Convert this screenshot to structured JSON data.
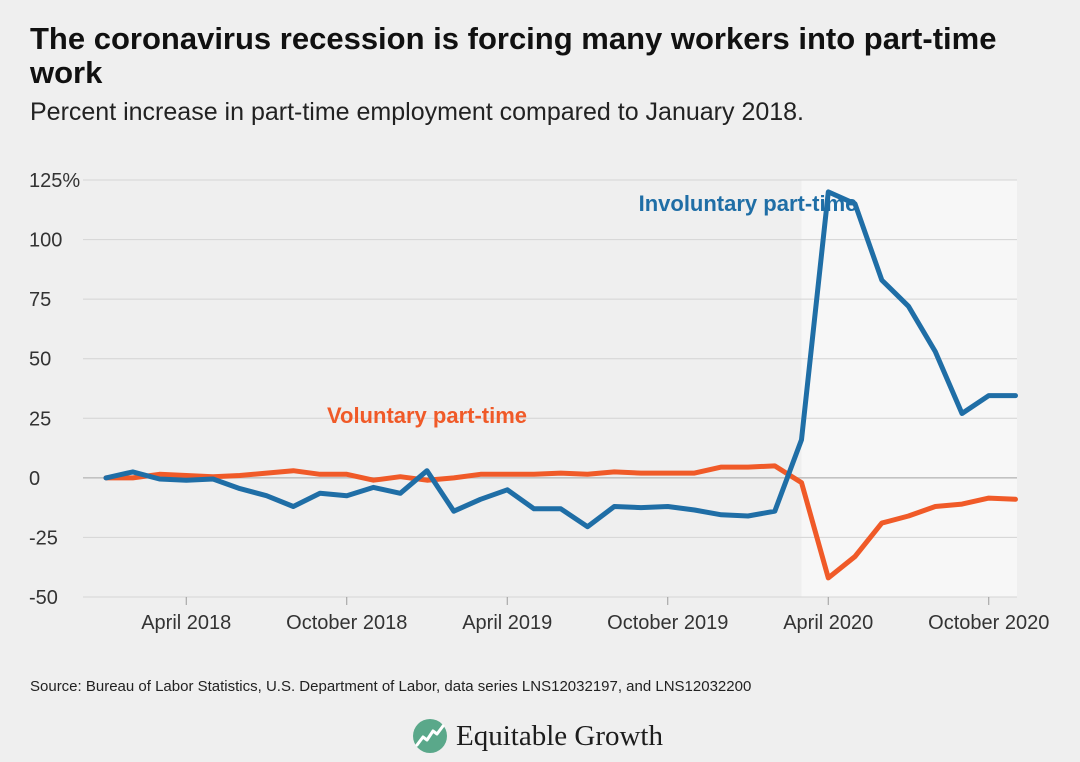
{
  "header": {
    "title": "The coronavirus recession is forcing many workers into part-time work",
    "subtitle": "Percent increase in part-time employment compared to January 2018."
  },
  "footer": {
    "source": "Source: Bureau of Labor Statistics, U.S. Department of Labor, data series LNS12032197, and LNS12032200",
    "brand": "Equitable Growth"
  },
  "colors": {
    "involuntary": "#1f6ea6",
    "voluntary": "#f05a28",
    "shade": "#f7f7f7",
    "grid": "#d4d4d4",
    "zero_line": "#c2c2c2",
    "axis_text": "#333333",
    "logo": "#5aa88a"
  },
  "chart_data": {
    "type": "line",
    "x_start": "2018-01",
    "x": [
      "Jan 2018",
      "Feb 2018",
      "Mar 2018",
      "Apr 2018",
      "May 2018",
      "Jun 2018",
      "Jul 2018",
      "Aug 2018",
      "Sep 2018",
      "Oct 2018",
      "Nov 2018",
      "Dec 2018",
      "Jan 2019",
      "Feb 2019",
      "Mar 2019",
      "Apr 2019",
      "May 2019",
      "Jun 2019",
      "Jul 2019",
      "Aug 2019",
      "Sep 2019",
      "Oct 2019",
      "Nov 2019",
      "Dec 2019",
      "Jan 2020",
      "Feb 2020",
      "Mar 2020",
      "Apr 2020",
      "May 2020",
      "Jun 2020",
      "Jul 2020",
      "Aug 2020",
      "Sep 2020",
      "Oct 2020",
      "Nov 2020"
    ],
    "x_tick_labels": [
      {
        "index": 3,
        "label": "April 2018"
      },
      {
        "index": 9,
        "label": "October 2018"
      },
      {
        "index": 15,
        "label": "April 2019"
      },
      {
        "index": 21,
        "label": "October 2019"
      },
      {
        "index": 27,
        "label": "April 2020"
      },
      {
        "index": 33,
        "label": "October 2020"
      }
    ],
    "y_ticks": [
      {
        "value": 125,
        "label": "125%"
      },
      {
        "value": 100,
        "label": "100"
      },
      {
        "value": 75,
        "label": "75"
      },
      {
        "value": 50,
        "label": "50"
      },
      {
        "value": 25,
        "label": "25"
      },
      {
        "value": 0,
        "label": "0"
      },
      {
        "value": -25,
        "label": "-25"
      },
      {
        "value": -50,
        "label": "-50"
      }
    ],
    "ylim": [
      -50,
      125
    ],
    "shaded_region": {
      "from": "Mar 2020",
      "to": "Nov 2020"
    },
    "grid": true,
    "legend": "inline labels",
    "series": [
      {
        "name": "Involuntary part-time",
        "color_key": "involuntary",
        "label_x": "Jan 2020",
        "label_y": 112,
        "values": [
          0,
          2.5,
          -0.5,
          -1,
          -0.5,
          -4.5,
          -7.5,
          -12,
          -6.5,
          -7.5,
          -4,
          -6.5,
          3,
          -14,
          -9,
          -5,
          -13,
          -13,
          -20.5,
          -12,
          -12.5,
          -12,
          -13.5,
          -15.5,
          -16,
          -14,
          16,
          120,
          115,
          83,
          72,
          53,
          27,
          34.5,
          34.5
        ]
      },
      {
        "name": "Voluntary part-time",
        "color_key": "voluntary",
        "label_x": "Jan 2019",
        "label_y": 23,
        "values": [
          0,
          0,
          1.5,
          1,
          0.5,
          1,
          2,
          3,
          1.5,
          1.5,
          -1,
          0.5,
          -1,
          0,
          1.5,
          1.5,
          1.5,
          2,
          1.5,
          2.5,
          2,
          2,
          2,
          4.5,
          4.5,
          5,
          -2,
          -42,
          -33,
          -19,
          -16,
          -12,
          -11,
          -8.5,
          -9
        ]
      }
    ]
  }
}
